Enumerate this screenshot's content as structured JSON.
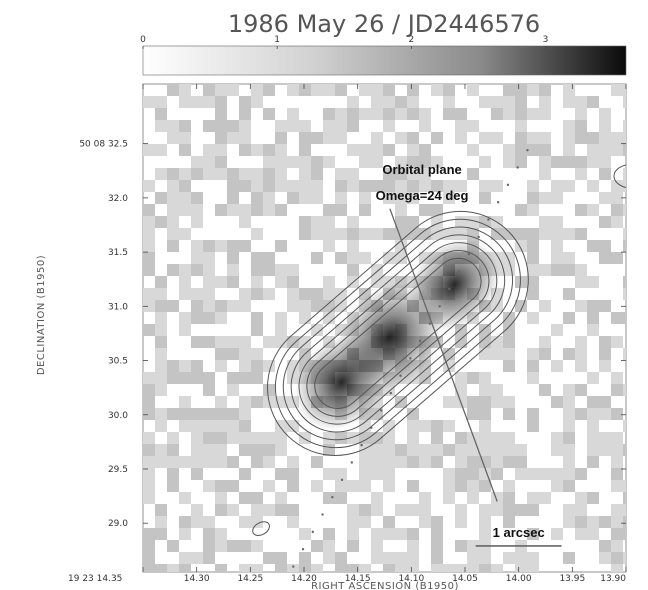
{
  "chart_data": {
    "type": "heatmap",
    "title": "1986 May 26 / JD2446576",
    "xlabel": "RIGHT ASCENSION (B1950)",
    "ylabel": "DECLINATION (B1950)",
    "colorbar": {
      "range": [
        0,
        3.6
      ],
      "ticks": [
        0,
        1,
        2,
        3
      ],
      "tick_labels": [
        "0",
        "1",
        "2",
        "3"
      ],
      "gradient": "white-to-black"
    },
    "x_ticks": [
      "19 23 14.35",
      "14.30",
      "14.25",
      "14.20",
      "14.15",
      "14.10",
      "14.05",
      "14.00",
      "13.95",
      "13.90"
    ],
    "x_tick_values": [
      14.35,
      14.3,
      14.25,
      14.2,
      14.15,
      14.1,
      14.05,
      14.0,
      13.95,
      13.9
    ],
    "xlim": [
      14.35,
      13.9
    ],
    "y_ticks": [
      "50 08 32.5",
      "32.0",
      "31.5",
      "31.0",
      "30.5",
      "30.0",
      "29.5",
      "29.0"
    ],
    "y_tick_values": [
      32.5,
      32.0,
      31.5,
      31.0,
      30.5,
      30.0,
      29.5,
      29.0
    ],
    "ylim": [
      28.55,
      33.05
    ],
    "sources": [
      {
        "ra": 14.165,
        "dec": 30.3,
        "peak": 2.9
      },
      {
        "ra": 14.12,
        "dec": 30.72,
        "peak": 3.6
      },
      {
        "ra": 14.06,
        "dec": 31.2,
        "peak": 2.7
      }
    ],
    "contour_levels": [
      0.08,
      0.16,
      0.28,
      0.45,
      0.7,
      1.05,
      1.5
    ],
    "annotations": [
      {
        "text": "Orbital plane",
        "ra": 14.09,
        "dec": 32.22
      },
      {
        "text": "Omega=24 deg",
        "ra": 14.09,
        "dec": 31.98
      }
    ],
    "orbital_plane_line": {
      "from": [
        14.12,
        31.9
      ],
      "to": [
        14.02,
        29.2
      ]
    },
    "scale_bar": {
      "label": "1 arcsec",
      "from_ra": 14.04,
      "to_ra": 13.96,
      "dec": 28.79
    }
  },
  "colors": {
    "background": "#ffffff",
    "contour": "#555555",
    "noise": "#cfcfcf",
    "text": "#333333"
  }
}
